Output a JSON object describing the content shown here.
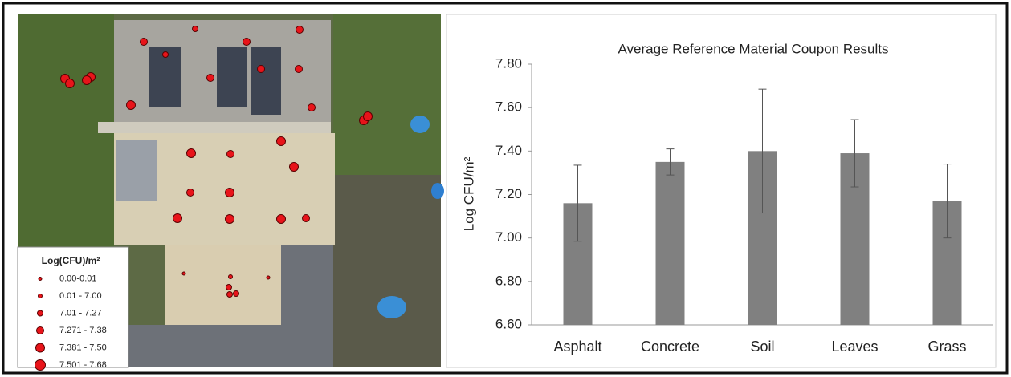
{
  "map_legend": {
    "title": "Log(CFU)/m²",
    "classes": [
      "0.00-0.01",
      "0.01 - 7.00",
      "7.01 - 7.27",
      "7.271 - 7.38",
      "7.381 - 7.50",
      "7.501 - 7.68"
    ]
  },
  "chart_data": {
    "type": "bar",
    "title": "Average Reference Material Coupon Results",
    "y_label": "Log CFU/m²",
    "categories": [
      "Asphalt",
      "Concrete",
      "Soil",
      "Leaves",
      "Grass"
    ],
    "values": [
      7.16,
      7.35,
      7.4,
      7.39,
      7.17
    ],
    "errors": [
      0.175,
      0.06,
      0.285,
      0.155,
      0.17
    ],
    "color": "#808080",
    "ylim": [
      6.6,
      7.8
    ],
    "yticks": [
      {
        "value": 6.6,
        "label": "6.60"
      },
      {
        "value": 6.8,
        "label": "6.80"
      },
      {
        "value": 7.0,
        "label": "7.00"
      },
      {
        "value": 7.2,
        "label": "7.20"
      },
      {
        "value": 7.4,
        "label": "7.40"
      },
      {
        "value": 7.6,
        "label": "7.60"
      },
      {
        "value": 7.8,
        "label": "7.80"
      }
    ],
    "grid": false
  }
}
